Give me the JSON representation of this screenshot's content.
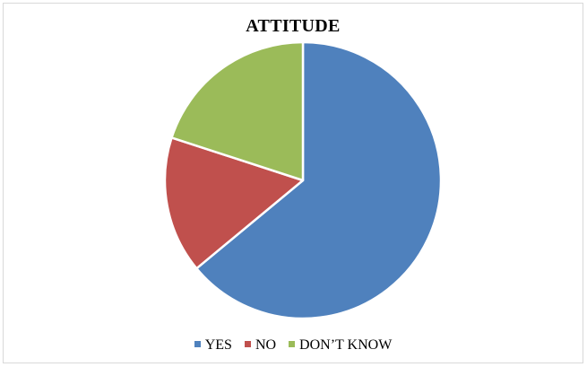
{
  "chart_data": {
    "type": "pie",
    "title": "ATTITUDE",
    "categories": [
      "YES",
      "NO",
      "DON’T KNOW"
    ],
    "values": [
      64,
      16,
      20
    ],
    "colors": [
      "#4f81bd",
      "#c0504d",
      "#9bbb59"
    ],
    "legend_position": "bottom",
    "start_angle_deg": 0,
    "direction": "clockwise"
  }
}
